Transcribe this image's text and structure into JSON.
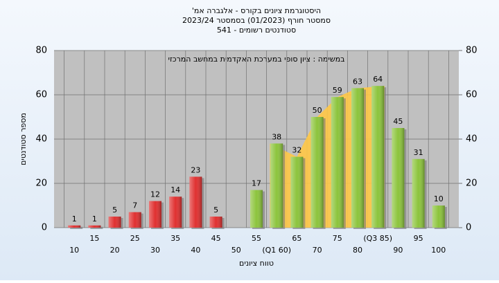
{
  "chart_data": {
    "type": "bar",
    "title": "היסטוגרמת ציונים בקורס - אלגברה אמ'",
    "subtitle": "סמסטר חורף (01/2023) בסמסטר 2023/24",
    "subtitle2": "סטודנטים רשומים - 541",
    "annotation": "במשימה : ציון סופי במערכת האקדמית במחשב המרכזי",
    "x_label": "טווח ציונים",
    "y_label": "מספר סטודנטים",
    "categories": [
      "10",
      "15",
      "20",
      "25",
      "30",
      "35",
      "40",
      "45",
      "50",
      "55",
      "(Q1 60)",
      "65",
      "70",
      "75",
      "80",
      "(Q3 85)",
      "90",
      "95",
      "100"
    ],
    "values": [
      1,
      1,
      5,
      7,
      12,
      14,
      23,
      5,
      null,
      17,
      38,
      32,
      50,
      59,
      63,
      64,
      45,
      31,
      10
    ],
    "colors": [
      "#e03030",
      "#e03030",
      "#e03030",
      "#e03030",
      "#e03030",
      "#e03030",
      "#e03030",
      "#e03030",
      "#e03030",
      "#8cc43c",
      "#8cc43c",
      "#8cc43c",
      "#8cc43c",
      "#8cc43c",
      "#8cc43c",
      "#8cc43c",
      "#8cc43c",
      "#8cc43c",
      "#8cc43c"
    ],
    "quartile_color": "#ffc846",
    "ylim": [
      0,
      80
    ],
    "yticks": [
      0,
      20,
      40,
      60,
      80
    ],
    "y2lim": [
      0,
      80
    ],
    "y2ticks": [
      0,
      20,
      40,
      60,
      80
    ],
    "grid": true
  }
}
